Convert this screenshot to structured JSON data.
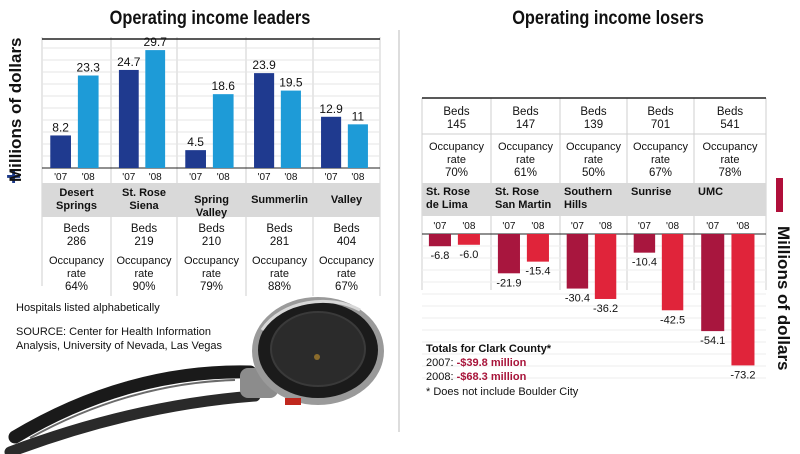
{
  "left_title": "Operating income leaders",
  "right_title": "Operating income losers",
  "y_axis_label": "Millions of dollars",
  "year_labels": [
    "'07",
    "'08"
  ],
  "beds_label": "Beds",
  "occupancy_label": "Occupancy rate",
  "colors": {
    "leader_2007": "#1f3a8f",
    "leader_2008": "#1e9bd7",
    "loser_2007": "#a8163e",
    "loser_2008": "#e0243a",
    "header_band": "#d9d9d9",
    "grid": "#cfcfcf"
  },
  "chart_data": [
    {
      "type": "bar",
      "title": "Operating income leaders",
      "ylabel": "Millions of dollars",
      "ylim": [
        0,
        33
      ],
      "categories": [
        "Desert Springs",
        "St. Rose Siena",
        "Spring Valley",
        "Summerlin",
        "Valley"
      ],
      "series": [
        {
          "name": "'07",
          "values": [
            8.2,
            24.7,
            4.5,
            23.9,
            12.9
          ]
        },
        {
          "name": "'08",
          "values": [
            23.3,
            29.7,
            18.6,
            19.5,
            11
          ]
        }
      ],
      "value_labels": {
        "2007": [
          "8.2",
          "24.7",
          "4.5",
          "23.9",
          "12.9"
        ],
        "2008": [
          "23.3",
          "29.7",
          "18.6",
          "19.5",
          "11"
        ]
      },
      "beds": [
        "286",
        "219",
        "210",
        "281",
        "404"
      ],
      "occupancy": [
        "64%",
        "90%",
        "79%",
        "88%",
        "67%"
      ],
      "hospital_labels": [
        "Desert\nSprings",
        "St. Rose\nSiena",
        "Spring Valley",
        "Summerlin",
        "Valley"
      ],
      "grid": true
    },
    {
      "type": "bar",
      "title": "Operating income losers",
      "ylabel": "Millions of dollars",
      "ylim": [
        -78,
        0
      ],
      "categories": [
        "St. Rose de Lima",
        "St. Rose San Martin",
        "Southern Hills",
        "Sunrise",
        "UMC"
      ],
      "series": [
        {
          "name": "'07",
          "values": [
            -6.8,
            -21.9,
            -30.4,
            -10.4,
            -54.1
          ]
        },
        {
          "name": "'08",
          "values": [
            -6.0,
            -15.4,
            -36.2,
            -42.5,
            -73.2
          ]
        }
      ],
      "value_labels": {
        "2007": [
          "-6.8",
          "-21.9",
          "-30.4",
          "-10.4",
          "-54.1"
        ],
        "2008": [
          "-6.0",
          "-15.4",
          "-36.2",
          "-42.5",
          "-73.2"
        ]
      },
      "beds": [
        "145",
        "147",
        "139",
        "701",
        "541"
      ],
      "occupancy": [
        "70%",
        "61%",
        "50%",
        "67%",
        "78%"
      ],
      "hospital_labels": [
        "St. Rose\nde Lima",
        "St. Rose\nSan Martin",
        "Southern\nHills",
        "Sunrise",
        "UMC"
      ],
      "grid": true
    }
  ],
  "notes": {
    "alphabetical": "Hospitals listed alphabetically",
    "source_line1": "SOURCE: Center for Health Information",
    "source_line2": "Analysis, University of Nevada, Las Vegas"
  },
  "totals": {
    "heading": "Totals for Clark County*",
    "y2007_label": "2007:",
    "y2007_value": "-$39.8 million",
    "y2008_label": "2008:",
    "y2008_value": "-$68.3 million",
    "footnote": "* Does not include Boulder City"
  }
}
